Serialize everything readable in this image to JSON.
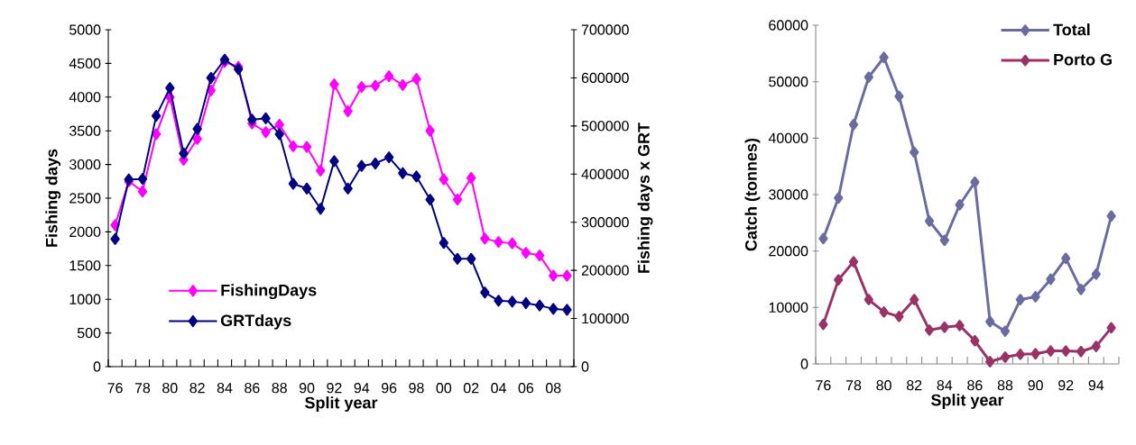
{
  "chart_data": [
    {
      "type": "line",
      "xlabel": "Split year",
      "ylabel": "Fishing days",
      "y2label": "Fishing days x GRT",
      "legend": "bottom left",
      "marker": "diamond",
      "line_style": "solid",
      "categories": [
        "76",
        null,
        "78",
        null,
        "80",
        null,
        "82",
        null,
        "84",
        null,
        "86",
        null,
        "88",
        null,
        "90",
        null,
        "92",
        null,
        "94",
        null,
        "96",
        null,
        "98",
        null,
        "00",
        null,
        "02",
        null,
        "04",
        null,
        "06",
        null,
        "08",
        null
      ],
      "ylim": [
        0,
        5000
      ],
      "yticks": [
        0,
        500,
        1000,
        1500,
        2000,
        2500,
        3000,
        3500,
        4000,
        4500,
        5000
      ],
      "y2lim": [
        0,
        700000
      ],
      "y2ticks": [
        0,
        100000,
        200000,
        300000,
        400000,
        500000,
        600000,
        700000
      ],
      "series": [
        {
          "name": "FishingDays",
          "color": "#ff00ff",
          "values": [
            2100,
            2750,
            2600,
            3450,
            4000,
            3070,
            3380,
            4100,
            4520,
            4450,
            3610,
            3480,
            3590,
            3270,
            3260,
            2910,
            4190,
            3790,
            4150,
            4170,
            4310,
            4180,
            4270,
            3500,
            2780,
            2480,
            2800,
            1900,
            1850,
            1830,
            1690,
            1650,
            1350,
            1350
          ]
        },
        {
          "name": "GRTdays",
          "color": "#000080",
          "axis": "y2",
          "values": [
            265000,
            389000,
            390000,
            521000,
            579000,
            443000,
            494000,
            600000,
            638000,
            618000,
            513000,
            516000,
            483000,
            380000,
            370000,
            328000,
            427000,
            370000,
            417000,
            422000,
            435000,
            402000,
            395000,
            347000,
            257000,
            224000,
            224000,
            154000,
            137000,
            135000,
            132000,
            127000,
            120000,
            118000
          ]
        }
      ]
    },
    {
      "type": "line",
      "xlabel": "Split year",
      "ylabel": "Catch (tonnes)",
      "legend": "top right",
      "marker": "diamond",
      "line_style": "solid",
      "categories": [
        "76",
        null,
        "78",
        null,
        "80",
        null,
        "82",
        null,
        "84",
        null,
        "86",
        null,
        "88",
        null,
        "90",
        null,
        "92",
        null,
        "94",
        null
      ],
      "ylim": [
        0,
        60000
      ],
      "yticks": [
        0,
        10000,
        20000,
        30000,
        40000,
        50000,
        60000
      ],
      "series": [
        {
          "name": "Total",
          "color": "#6b6ba0",
          "values": [
            22200,
            29400,
            42400,
            50800,
            54300,
            47400,
            37500,
            25300,
            21900,
            28200,
            32200,
            7500,
            5800,
            11400,
            11900,
            15000,
            18700,
            13200,
            15900,
            26200
          ]
        },
        {
          "name": "Porto G",
          "color": "#993366",
          "values": [
            7000,
            14900,
            18100,
            11400,
            9200,
            8400,
            11400,
            6000,
            6500,
            6800,
            4100,
            400,
            1200,
            1700,
            1800,
            2300,
            2300,
            2200,
            3100,
            6400
          ]
        }
      ]
    }
  ]
}
